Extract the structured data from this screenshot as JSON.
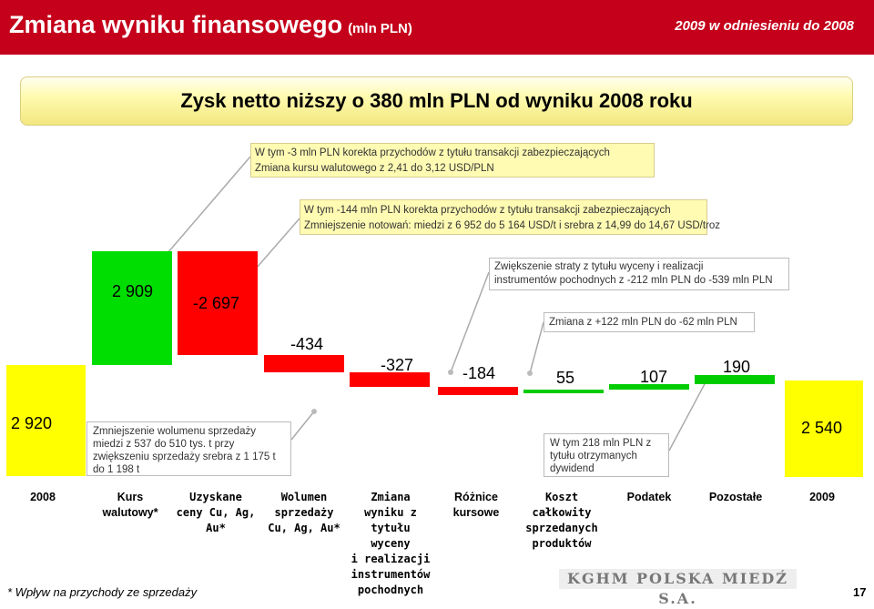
{
  "header": {
    "title": "Zmiana wyniku finansowego",
    "unit": "(mln PLN)",
    "subtitle": "2009 w odniesieniu do 2008"
  },
  "banner": "Zysk netto niższy o 380 mln PLN od wyniku 2008 roku",
  "notes": {
    "n1_line1": "W tym -3 mln PLN korekta przychodów z tytułu transakcji zabezpieczających",
    "n1_line2": "Zmiana kursu walutowego z 2,41 do 3,12 USD/PLN",
    "n2_line1": "W tym -144 mln PLN korekta przychodów z tytułu transakcji zabezpieczających",
    "n2_line2": "Zmniejszenie notowań: miedzi z 6 952 do 5 164 USD/t i srebra z 14,99 do 14,67 USD/troz",
    "n3_line1": "Zwiększenie straty z tytułu wyceny i realizacji",
    "n3_line2": "instrumentów pochodnych z -212 mln PLN do -539 mln PLN",
    "n4": "Zmiana z +122 mln PLN do -62 mln PLN",
    "n5": "Zmniejszenie wolumenu sprzedaży miedzi z 537 do 510 tys. t przy zwiększeniu sprzedaży srebra z 1 175 t do 1 198 t",
    "n6": "W tym 218 mln PLN z tytułu otrzymanych dywidend"
  },
  "chart_data": {
    "type": "bar",
    "subtype": "waterfall",
    "categories": [
      "2008",
      "Kurs walutowy*",
      "Uzyskane ceny Cu, Ag, Au*",
      "Wolumen sprzedaży Cu, Ag, Au*",
      "Zmiana wyniku z tytułu wyceny i realizacji instrumentów pochodnych",
      "Różnice kursowe",
      "Koszt całkowity sprzedanych produktów",
      "Podatek",
      "Pozostałe",
      "2009"
    ],
    "values": [
      2920,
      2909,
      -2697,
      -434,
      -327,
      -184,
      55,
      107,
      190,
      2540
    ],
    "value_labels": [
      "2 920",
      "2 909",
      "-2 697",
      "-434",
      "-327",
      "-184",
      "55",
      "107",
      "190",
      "2 540"
    ],
    "colors": {
      "total": "#ffff00",
      "increase": "#00cc00",
      "decrease": "#ff0000",
      "red_big": "#ff0000"
    }
  },
  "footnote": "* Wpływ na przychody ze sprzedaży",
  "logo": "KGHM POLSKA MIEDŹ S.A.",
  "page_number": "17"
}
